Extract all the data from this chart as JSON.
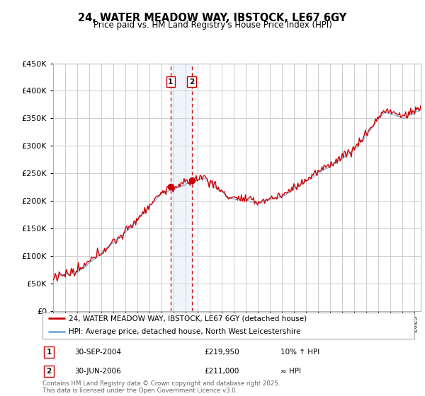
{
  "title": "24, WATER MEADOW WAY, IBSTOCK, LE67 6GY",
  "subtitle": "Price paid vs. HM Land Registry's House Price Index (HPI)",
  "ylim": [
    0,
    450000
  ],
  "xlim_start": 1995.0,
  "xlim_end": 2025.5,
  "transaction1": {
    "date_num": 2004.75,
    "price": 219950,
    "label": "1",
    "date_str": "30-SEP-2004",
    "hpi_rel": "10% ↑ HPI"
  },
  "transaction2": {
    "date_num": 2006.5,
    "price": 211000,
    "label": "2",
    "date_str": "30-JUN-2006",
    "hpi_rel": "≈ HPI"
  },
  "legend_entry1": "24, WATER MEADOW WAY, IBSTOCK, LE67 6GY (detached house)",
  "legend_entry2": "HPI: Average price, detached house, North West Leicestershire",
  "footnote": "Contains HM Land Registry data © Crown copyright and database right 2025.\nThis data is licensed under the Open Government Licence v3.0.",
  "line_color_red": "#cc0000",
  "line_color_blue": "#7aaadd",
  "vline_color": "#cc0000",
  "shade_color": "#cce0f5",
  "grid_color": "#cccccc",
  "background_color": "#ffffff",
  "marker_color_red": "#cc0000"
}
